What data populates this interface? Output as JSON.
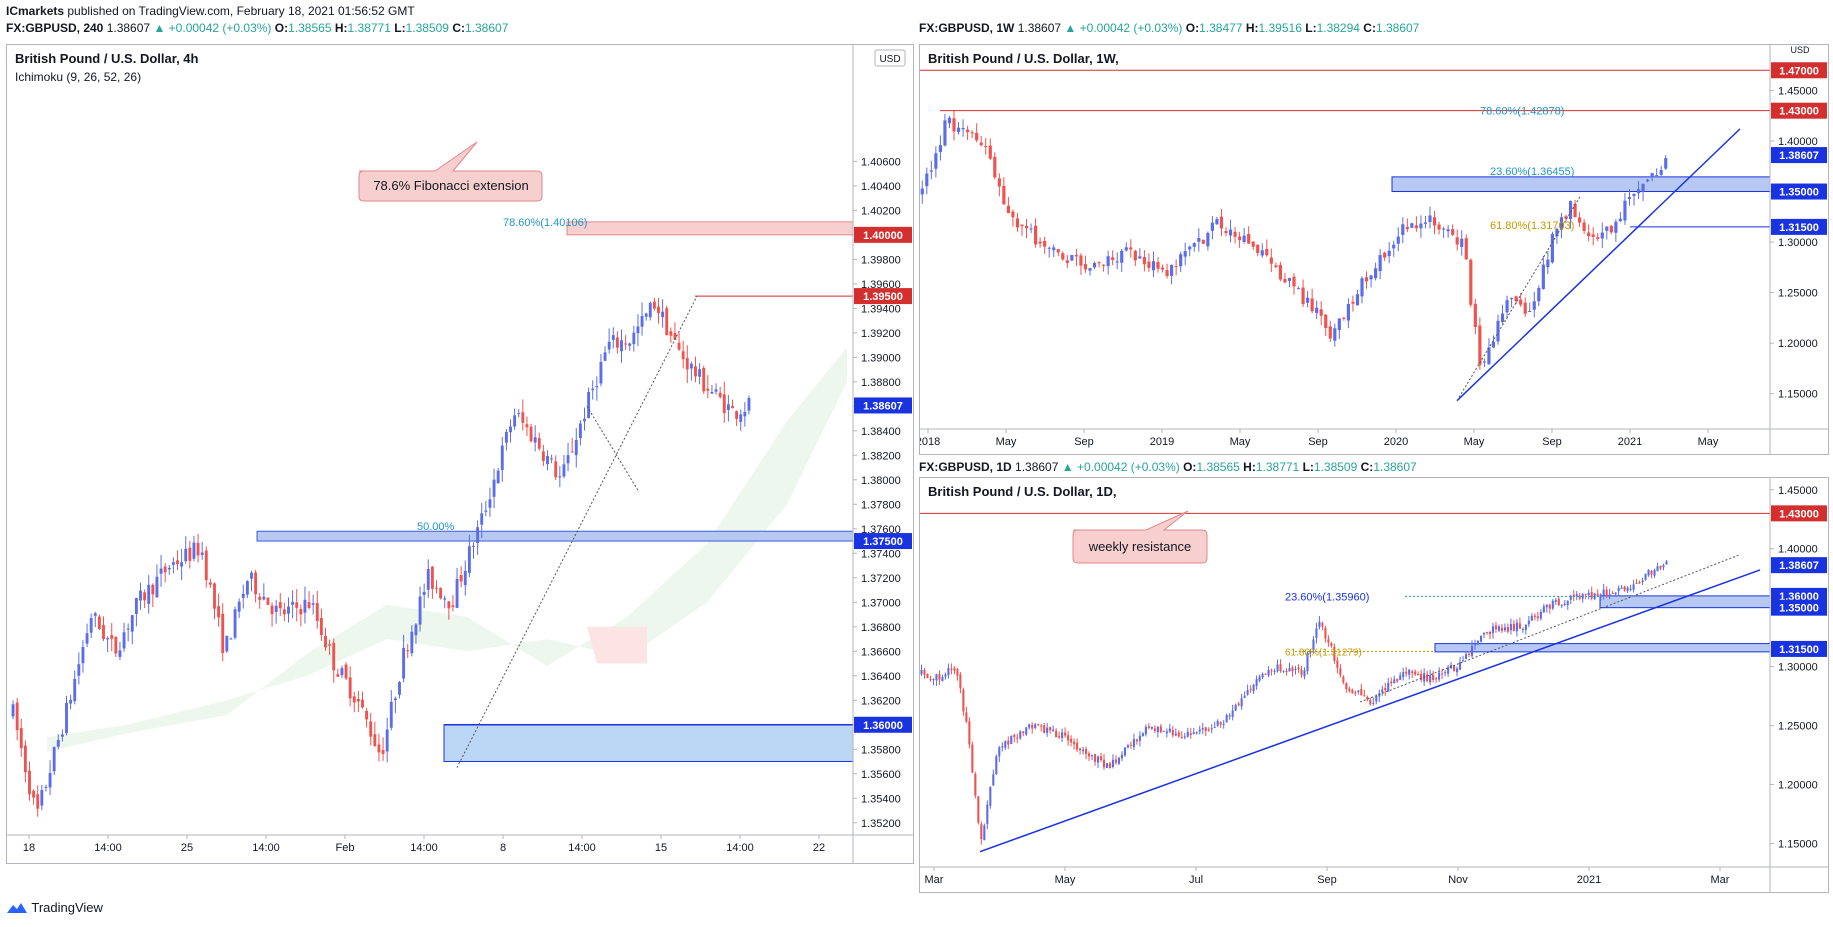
{
  "publisher": {
    "name": "ICmarkets",
    "text": "published on TradingView.com, February 18, 2021 01:56:52 GMT"
  },
  "footer_brand": "TradingView",
  "colors": {
    "up": "#5b6ee8",
    "down": "#ef5350",
    "resistance": "#d32f2f",
    "support": "#1a33e0",
    "fib": "#2196c9",
    "fib_gold": "#c49a00"
  },
  "panels": {
    "h4": {
      "header": {
        "symbol": "FX:GBPUSD, 240",
        "price": "1.38607",
        "arrow": "▲",
        "change": "+0.00042 (+0.03%)",
        "o_label": "O:",
        "o": "1.38565",
        "h_label": "H:",
        "h": "1.38771",
        "l_label": "L:",
        "l": "1.38509",
        "c_label": "C:",
        "c": "1.38607"
      },
      "title": "British Pound / U.S. Dollar, 4h",
      "indicator": "Ichimoku (9, 26, 52, 26)",
      "currency": "USD",
      "annotation": "78.6% Fibonacci extension",
      "fib_label": "78.60%(1.40106)",
      "zone_label": "50.00%",
      "hlines": [
        {
          "price": 1.4,
          "label": "1.40000",
          "kind": "resistance"
        },
        {
          "price": 1.395,
          "label": "1.39500",
          "kind": "resistance"
        },
        {
          "price": 1.375,
          "label": "1.37500",
          "kind": "support"
        },
        {
          "price": 1.36,
          "label": "1.36000",
          "kind": "support"
        }
      ],
      "last_price": {
        "price": 1.38607,
        "label": "1.38607"
      }
    },
    "w1": {
      "header": {
        "symbol": "FX:GBPUSD, 1W",
        "price": "1.38607",
        "arrow": "▲",
        "change": "+0.00042 (+0.03%)",
        "o_label": "O:",
        "o": "1.38477",
        "h_label": "H:",
        "h": "1.39516",
        "l_label": "L:",
        "l": "1.38294",
        "c_label": "C:",
        "c": "1.38607"
      },
      "title": "British Pound / U.S. Dollar, 1W,",
      "currency": "USD",
      "fib_labels": [
        "78.60%(1.42878)",
        "23.60%(1.36455)",
        "61.80%(1.31703)"
      ],
      "hlines": [
        {
          "price": 1.47,
          "label": "1.47000",
          "kind": "resistance"
        },
        {
          "price": 1.43,
          "label": "1.43000",
          "kind": "resistance"
        },
        {
          "price": 1.35,
          "label": "1.35000",
          "kind": "support"
        },
        {
          "price": 1.315,
          "label": "1.31500",
          "kind": "support"
        }
      ],
      "last_price": {
        "price": 1.38607,
        "label": "1.38607"
      }
    },
    "d1": {
      "header": {
        "symbol": "FX:GBPUSD, 1D",
        "price": "1.38607",
        "arrow": "▲",
        "change": "+0.00042 (+0.03%)",
        "o_label": "O:",
        "o": "1.38565",
        "h_label": "H:",
        "h": "1.38771",
        "l_label": "L:",
        "l": "1.38509",
        "c_label": "C:",
        "c": "1.38607"
      },
      "title": "British Pound / U.S. Dollar, 1D,",
      "annotation": "weekly resistance",
      "fib_labels": [
        "23.60%(1.35960)",
        "61.80%(1.31279)"
      ],
      "hlines": [
        {
          "price": 1.43,
          "label": "1.43000",
          "kind": "resistance"
        },
        {
          "price": 1.36,
          "label": "1.36000",
          "kind": "support"
        },
        {
          "price": 1.35,
          "label": "1.35000",
          "kind": "support"
        },
        {
          "price": 1.315,
          "label": "1.31500",
          "kind": "support"
        }
      ],
      "last_price": {
        "price": 1.38607,
        "label": "1.38607"
      }
    }
  },
  "chart_data": [
    {
      "type": "candlestick",
      "symbol": "GBPUSD",
      "timeframe": "4h",
      "ylim": [
        1.351,
        1.4155
      ],
      "yticks": [
        "1.35200",
        "1.35400",
        "1.35600",
        "1.35800",
        "1.36000",
        "1.36200",
        "1.36400",
        "1.36600",
        "1.36800",
        "1.37000",
        "1.37200",
        "1.37400",
        "1.37600",
        "1.37800",
        "1.38000",
        "1.38200",
        "1.38400",
        "1.38600",
        "1.38800",
        "1.39000",
        "1.39200",
        "1.39400",
        "1.39600",
        "1.39800",
        "1.40000",
        "1.40200",
        "1.40400",
        "1.40600"
      ],
      "xticks": [
        "18",
        "14:00",
        "25",
        "14:00",
        "Feb",
        "14:00",
        "8",
        "14:00",
        "15",
        "14:00",
        "22"
      ],
      "path": [
        [
          0,
          1.361
        ],
        [
          0.03,
          1.3525
        ],
        [
          0.07,
          1.3615
        ],
        [
          0.1,
          1.369
        ],
        [
          0.13,
          1.366
        ],
        [
          0.16,
          1.37
        ],
        [
          0.2,
          1.373
        ],
        [
          0.24,
          1.3745
        ],
        [
          0.27,
          1.366
        ],
        [
          0.3,
          1.372
        ],
        [
          0.34,
          1.369
        ],
        [
          0.38,
          1.37
        ],
        [
          0.41,
          1.365
        ],
        [
          0.44,
          1.362
        ],
        [
          0.47,
          1.3575
        ],
        [
          0.5,
          1.366
        ],
        [
          0.53,
          1.372
        ],
        [
          0.56,
          1.37
        ],
        [
          0.6,
          1.377
        ],
        [
          0.64,
          1.3855
        ],
        [
          0.67,
          1.383
        ],
        [
          0.7,
          1.38
        ],
        [
          0.73,
          1.3855
        ],
        [
          0.76,
          1.391
        ],
        [
          0.79,
          1.3915
        ],
        [
          0.82,
          1.3945
        ],
        [
          0.85,
          1.3905
        ],
        [
          0.88,
          1.388
        ],
        [
          0.92,
          1.3855
        ],
        [
          0.94,
          1.3861
        ]
      ]
    },
    {
      "type": "candlestick",
      "symbol": "GBPUSD",
      "timeframe": "1W",
      "ylim": [
        1.115,
        1.495
      ],
      "yticks": [
        "1.15000",
        "1.20000",
        "1.25000",
        "1.30000",
        "1.35000",
        "1.40000",
        "1.45000"
      ],
      "xticks": [
        "2018",
        "May",
        "Sep",
        "2019",
        "May",
        "Sep",
        "2020",
        "May",
        "Sep",
        "2021",
        "May"
      ],
      "path": [
        [
          0,
          1.35
        ],
        [
          0.03,
          1.42
        ],
        [
          0.08,
          1.39
        ],
        [
          0.1,
          1.33
        ],
        [
          0.15,
          1.295
        ],
        [
          0.2,
          1.275
        ],
        [
          0.25,
          1.29
        ],
        [
          0.3,
          1.27
        ],
        [
          0.36,
          1.32
        ],
        [
          0.4,
          1.3
        ],
        [
          0.44,
          1.265
        ],
        [
          0.47,
          1.24
        ],
        [
          0.5,
          1.205
        ],
        [
          0.53,
          1.255
        ],
        [
          0.58,
          1.31
        ],
        [
          0.62,
          1.32
        ],
        [
          0.66,
          1.295
        ],
        [
          0.68,
          1.165
        ],
        [
          0.71,
          1.245
        ],
        [
          0.74,
          1.23
        ],
        [
          0.77,
          1.31
        ],
        [
          0.79,
          1.335
        ],
        [
          0.81,
          1.3
        ],
        [
          0.84,
          1.315
        ],
        [
          0.86,
          1.345
        ],
        [
          0.88,
          1.363
        ],
        [
          0.9,
          1.372
        ],
        [
          0.905,
          1.386
        ]
      ]
    },
    {
      "type": "candlestick",
      "symbol": "GBPUSD",
      "timeframe": "1D",
      "ylim": [
        1.13,
        1.46
      ],
      "yticks": [
        "1.15000",
        "1.20000",
        "1.25000",
        "1.30000",
        "1.35000",
        "1.40000",
        "1.45000"
      ],
      "xticks": [
        "Mar",
        "May",
        "Jul",
        "Sep",
        "Nov",
        "2021",
        "Mar"
      ],
      "path": [
        [
          0,
          1.295
        ],
        [
          0.02,
          1.29
        ],
        [
          0.04,
          1.3
        ],
        [
          0.055,
          1.245
        ],
        [
          0.07,
          1.15
        ],
        [
          0.09,
          1.23
        ],
        [
          0.13,
          1.25
        ],
        [
          0.17,
          1.24
        ],
        [
          0.22,
          1.215
        ],
        [
          0.27,
          1.25
        ],
        [
          0.31,
          1.24
        ],
        [
          0.36,
          1.255
        ],
        [
          0.41,
          1.3
        ],
        [
          0.45,
          1.295
        ],
        [
          0.47,
          1.34
        ],
        [
          0.5,
          1.285
        ],
        [
          0.53,
          1.27
        ],
        [
          0.57,
          1.295
        ],
        [
          0.6,
          1.29
        ],
        [
          0.63,
          1.3
        ],
        [
          0.67,
          1.33
        ],
        [
          0.71,
          1.335
        ],
        [
          0.75,
          1.355
        ],
        [
          0.79,
          1.36
        ],
        [
          0.83,
          1.365
        ],
        [
          0.86,
          1.38
        ],
        [
          0.88,
          1.386
        ]
      ]
    }
  ]
}
